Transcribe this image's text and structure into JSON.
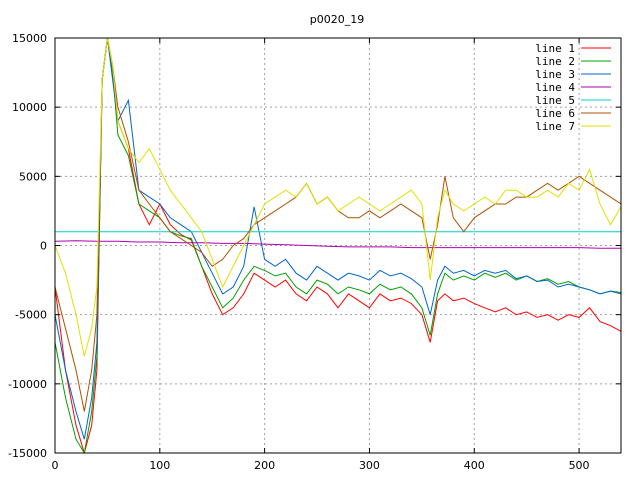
{
  "chart_data": {
    "type": "line",
    "title": "p0020_19",
    "xlabel": "",
    "ylabel": "",
    "xlim": [
      0,
      540
    ],
    "ylim": [
      -15000,
      15000
    ],
    "xticks": [
      0,
      100,
      200,
      300,
      400,
      500
    ],
    "yticks": [
      -15000,
      -10000,
      -5000,
      0,
      5000,
      10000,
      15000
    ],
    "xtick_labels": [
      "0",
      "100",
      "200",
      "300",
      "400",
      "500"
    ],
    "ytick_labels": [
      "-15000",
      "-10000",
      "-5000",
      "0",
      "5000",
      "10000",
      "15000"
    ],
    "grid": true,
    "legend_position": "top-right",
    "series": [
      {
        "name": "line 1",
        "color": "#ff0000",
        "x": [
          0,
          10,
          20,
          28,
          35,
          40,
          45,
          50,
          55,
          60,
          70,
          80,
          90,
          100,
          110,
          120,
          130,
          140,
          150,
          160,
          170,
          180,
          190,
          200,
          210,
          220,
          230,
          240,
          250,
          260,
          270,
          280,
          290,
          300,
          310,
          320,
          330,
          340,
          350,
          358,
          365,
          372,
          380,
          390,
          400,
          410,
          420,
          430,
          440,
          450,
          460,
          470,
          480,
          490,
          500,
          510,
          520,
          530,
          540
        ],
        "y": [
          -3000,
          -9000,
          -13000,
          -15000,
          -13000,
          -9000,
          12000,
          15000,
          13000,
          9000,
          7000,
          3000,
          1500,
          3000,
          1500,
          800,
          400,
          -1500,
          -3500,
          -5000,
          -4500,
          -3500,
          -2000,
          -2500,
          -3000,
          -2500,
          -3500,
          -4000,
          -3000,
          -3500,
          -4500,
          -3500,
          -4000,
          -4500,
          -3500,
          -4000,
          -3800,
          -4200,
          -5000,
          -7000,
          -4000,
          -3500,
          -4000,
          -3800,
          -4200,
          -4500,
          -4800,
          -4500,
          -5000,
          -4800,
          -5200,
          -5000,
          -5400,
          -5000,
          -5200,
          -4500,
          -5500,
          -5800,
          -6200
        ]
      },
      {
        "name": "line 2",
        "color": "#00a000",
        "x": [
          0,
          10,
          20,
          28,
          35,
          40,
          45,
          50,
          55,
          60,
          70,
          80,
          90,
          100,
          110,
          120,
          130,
          140,
          150,
          160,
          170,
          180,
          190,
          200,
          210,
          220,
          230,
          240,
          250,
          260,
          270,
          280,
          290,
          300,
          310,
          320,
          330,
          340,
          350,
          358,
          365,
          372,
          380,
          390,
          400,
          410,
          420,
          430,
          440,
          450,
          460,
          470,
          480,
          490,
          500,
          510,
          520,
          530,
          540
        ],
        "y": [
          -7000,
          -11000,
          -14000,
          -15000,
          -12000,
          -8000,
          12000,
          15000,
          12500,
          8000,
          6500,
          3000,
          2500,
          2000,
          1000,
          700,
          500,
          -1500,
          -3000,
          -4500,
          -3800,
          -2500,
          -1500,
          -1800,
          -2200,
          -2000,
          -3000,
          -3500,
          -2500,
          -2800,
          -3500,
          -3000,
          -3200,
          -3500,
          -2800,
          -3200,
          -3000,
          -3500,
          -4500,
          -6500,
          -3500,
          -2000,
          -2500,
          -2200,
          -2500,
          -2000,
          -2300,
          -2000,
          -2500,
          -2200,
          -2600,
          -2400,
          -2800,
          -2600,
          -3000,
          -3200,
          -3500,
          -3300,
          -3400
        ]
      },
      {
        "name": "line 3",
        "color": "#0066cc",
        "x": [
          0,
          10,
          20,
          28,
          35,
          40,
          45,
          50,
          55,
          60,
          70,
          80,
          90,
          100,
          110,
          120,
          130,
          140,
          150,
          160,
          170,
          180,
          190,
          200,
          210,
          220,
          230,
          240,
          250,
          260,
          270,
          280,
          290,
          300,
          310,
          320,
          330,
          340,
          350,
          358,
          365,
          372,
          380,
          390,
          400,
          410,
          420,
          430,
          440,
          450,
          460,
          470,
          480,
          490,
          500,
          510,
          520,
          530,
          540
        ],
        "y": [
          -5000,
          -9000,
          -12000,
          -14000,
          -11000,
          -7000,
          12000,
          15000,
          12000,
          9000,
          10500,
          4000,
          3500,
          3000,
          2000,
          1500,
          1000,
          -500,
          -2000,
          -3500,
          -3000,
          -1500,
          2800,
          -1000,
          -1500,
          -1000,
          -2000,
          -2500,
          -1500,
          -2000,
          -2500,
          -2000,
          -2200,
          -2500,
          -1800,
          -2200,
          -2000,
          -2400,
          -3000,
          -5000,
          -2500,
          -1500,
          -2000,
          -1800,
          -2200,
          -1800,
          -2000,
          -1800,
          -2400,
          -2200,
          -2600,
          -2500,
          -3000,
          -2800,
          -3000,
          -3200,
          -3500,
          -3300,
          -3500
        ]
      },
      {
        "name": "line 4",
        "color": "#b000b0",
        "x": [
          0,
          20,
          40,
          60,
          80,
          100,
          120,
          140,
          160,
          180,
          200,
          220,
          240,
          260,
          280,
          300,
          320,
          340,
          360,
          380,
          400,
          420,
          440,
          460,
          480,
          500,
          520,
          540
        ],
        "y": [
          300,
          350,
          300,
          300,
          250,
          250,
          200,
          200,
          150,
          150,
          100,
          50,
          0,
          -50,
          -100,
          -100,
          -100,
          -150,
          -150,
          -150,
          -150,
          -150,
          -150,
          -150,
          -150,
          -150,
          -200,
          -200
        ]
      },
      {
        "name": "line 5",
        "color": "#00d0d0",
        "x": [
          0,
          20,
          40,
          60,
          80,
          100,
          120,
          140,
          160,
          180,
          200,
          220,
          240,
          260,
          280,
          300,
          320,
          340,
          360,
          380,
          400,
          420,
          440,
          460,
          480,
          500,
          520,
          540
        ],
        "y": [
          1000,
          1000,
          1000,
          1000,
          1000,
          1000,
          1000,
          1000,
          1000,
          1000,
          1000,
          1000,
          1000,
          1000,
          1000,
          1000,
          1000,
          1000,
          1000,
          1000,
          1000,
          1000,
          1000,
          1000,
          1000,
          1000,
          1000,
          1000
        ]
      },
      {
        "name": "line 6",
        "color": "#b05000",
        "x": [
          0,
          10,
          20,
          28,
          35,
          40,
          45,
          50,
          55,
          60,
          70,
          80,
          90,
          100,
          110,
          120,
          130,
          140,
          150,
          160,
          170,
          180,
          190,
          200,
          210,
          220,
          230,
          240,
          250,
          260,
          270,
          280,
          290,
          300,
          310,
          320,
          330,
          340,
          350,
          358,
          365,
          372,
          380,
          390,
          400,
          410,
          420,
          430,
          440,
          450,
          460,
          470,
          480,
          490,
          500,
          510,
          520,
          530,
          540
        ],
        "y": [
          -3000,
          -6000,
          -9000,
          -12000,
          -9000,
          -5000,
          12000,
          15000,
          13000,
          10000,
          7500,
          4000,
          3000,
          2000,
          1000,
          500,
          0,
          -500,
          -1500,
          -1000,
          0,
          500,
          1500,
          2000,
          2500,
          3000,
          3500,
          4500,
          3000,
          3500,
          2500,
          2000,
          2000,
          2500,
          2000,
          2500,
          3000,
          2500,
          2000,
          -1000,
          1500,
          5000,
          2000,
          1000,
          2000,
          2500,
          3000,
          3000,
          3500,
          3500,
          4000,
          4500,
          4000,
          4500,
          5000,
          4500,
          4000,
          3500,
          3000
        ]
      },
      {
        "name": "line 7",
        "color": "#e0e000",
        "x": [
          0,
          10,
          20,
          28,
          35,
          40,
          45,
          50,
          55,
          60,
          70,
          80,
          90,
          100,
          110,
          120,
          130,
          140,
          150,
          160,
          170,
          180,
          190,
          200,
          210,
          220,
          230,
          240,
          250,
          260,
          270,
          280,
          290,
          300,
          310,
          320,
          330,
          340,
          350,
          358,
          365,
          372,
          380,
          390,
          400,
          410,
          420,
          430,
          440,
          450,
          460,
          470,
          480,
          490,
          500,
          510,
          520,
          530,
          540
        ],
        "y": [
          0,
          -2000,
          -5000,
          -8000,
          -6000,
          -3000,
          12000,
          15000,
          13000,
          9000,
          7000,
          6000,
          7000,
          5500,
          4000,
          3000,
          2000,
          1000,
          -1000,
          -3000,
          -1500,
          0,
          1500,
          3000,
          3500,
          4000,
          3500,
          4500,
          3000,
          3500,
          2500,
          3000,
          3500,
          3000,
          2500,
          3000,
          3500,
          4000,
          3000,
          -2500,
          2000,
          4000,
          3000,
          2500,
          3000,
          3500,
          3000,
          4000,
          4000,
          3500,
          3500,
          4000,
          3500,
          4500,
          4000,
          5500,
          3000,
          1500,
          2800
        ]
      }
    ]
  }
}
